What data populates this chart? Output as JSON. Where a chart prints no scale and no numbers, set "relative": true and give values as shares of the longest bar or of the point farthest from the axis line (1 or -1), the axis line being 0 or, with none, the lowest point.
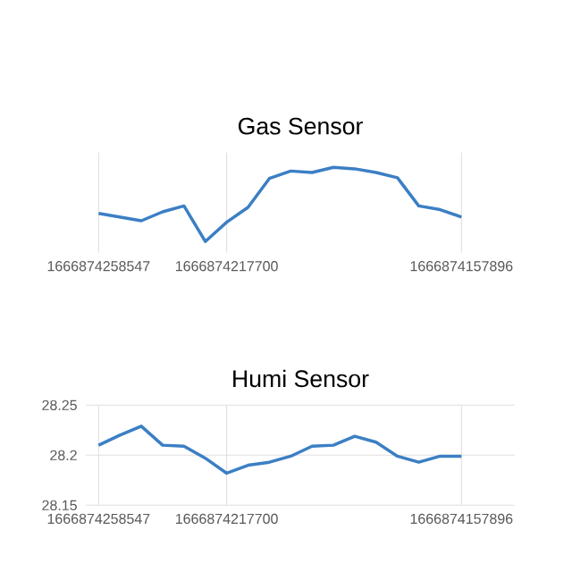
{
  "chart_data": [
    {
      "type": "line",
      "title": "Gas Sensor",
      "relative": true,
      "grid": "x",
      "color": "#3b7fc4",
      "categories": [
        "1666874258547",
        null,
        null,
        null,
        null,
        null,
        "1666874217700",
        null,
        null,
        null,
        null,
        null,
        null,
        null,
        null,
        null,
        null,
        "1666874157896"
      ],
      "values": [
        0.38,
        0.33,
        0.28,
        0.4,
        0.48,
        0.0,
        0.26,
        0.46,
        0.85,
        0.95,
        0.93,
        1.0,
        0.98,
        0.93,
        0.86,
        0.48,
        0.43,
        0.33
      ]
    },
    {
      "type": "line",
      "title": "Humi Sensor",
      "grid": true,
      "color": "#3b7fc4",
      "categories": [
        "1666874258547",
        null,
        null,
        null,
        null,
        null,
        "1666874217700",
        null,
        null,
        null,
        null,
        null,
        null,
        null,
        null,
        null,
        null,
        "1666874157896"
      ],
      "values": [
        28.21,
        28.22,
        28.229,
        28.21,
        28.209,
        28.197,
        28.182,
        28.19,
        28.193,
        28.199,
        28.209,
        28.21,
        28.219,
        28.213,
        28.199,
        28.193,
        28.199,
        28.199
      ],
      "ylim": [
        28.15,
        28.25
      ],
      "yticks": [
        28.15,
        28.2,
        28.25
      ]
    }
  ]
}
